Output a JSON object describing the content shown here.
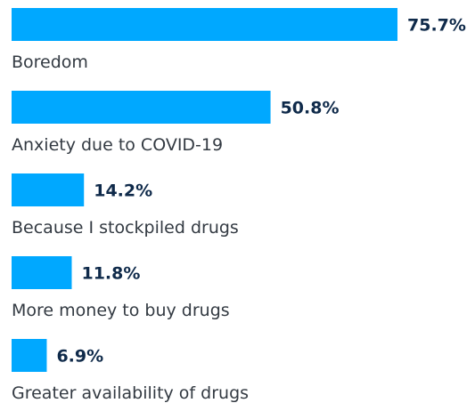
{
  "chart_data": {
    "type": "bar",
    "orientation": "horizontal",
    "categories": [
      "Boredom",
      "Anxiety due to COVID-19",
      "Because I stockpiled drugs",
      "More money to buy drugs",
      "Greater availability of drugs"
    ],
    "values": [
      75.7,
      50.8,
      14.2,
      11.8,
      6.9
    ],
    "value_labels": [
      "75.7%",
      "50.8%",
      "14.2%",
      "11.8%",
      "6.9%"
    ],
    "unit": "%",
    "grid": false,
    "legend": "none"
  },
  "colors": {
    "bar": "#00a8ff",
    "value_text": "#0f2a4a",
    "label_text": "#333a42",
    "background": "#ffffff"
  }
}
